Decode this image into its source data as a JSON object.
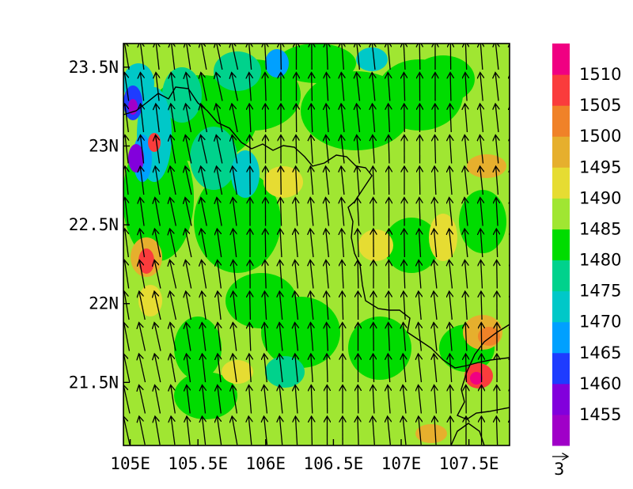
{
  "chart_data": {
    "type": "heatmap",
    "title": "",
    "xlabel": "",
    "ylabel": "",
    "xlim": [
      104.95,
      107.8
    ],
    "ylim": [
      21.1,
      23.65
    ],
    "x_ticks": [
      105.0,
      105.5,
      106.0,
      106.5,
      107.0,
      107.5
    ],
    "x_tick_labels": [
      "105E",
      "105.5E",
      "106E",
      "106.5E",
      "107E",
      "107.5E"
    ],
    "y_ticks": [
      21.5,
      22.0,
      22.5,
      23.0,
      23.5
    ],
    "y_tick_labels": [
      "21.5N",
      "22N",
      "22.5N",
      "23N",
      "23.5N"
    ],
    "colorbar": {
      "levels": [
        1455,
        1460,
        1465,
        1470,
        1475,
        1480,
        1485,
        1490,
        1495,
        1500,
        1505,
        1510
      ],
      "level_labels": [
        "1455",
        "1460",
        "1465",
        "1470",
        "1475",
        "1480",
        "1485",
        "1490",
        "1495",
        "1500",
        "1505",
        "1510"
      ],
      "colors": [
        "#a000c8",
        "#8200dc",
        "#1e3cff",
        "#00a0ff",
        "#00c8c8",
        "#00d28c",
        "#00dc00",
        "#a0e632",
        "#e6dc32",
        "#e6af2d",
        "#f08228",
        "#fa3c3c",
        "#f00082"
      ]
    },
    "vector_reference": {
      "label": "3"
    },
    "wind_direction": "predominantly southerly (arrows point north)",
    "fill_description": "mostly 1485-1495 range (light green), patches of 1480-1485 (green) and 1475-1480 (teal) in the north and west, higher values (1495-1510) near the eastern coast and western edge"
  }
}
